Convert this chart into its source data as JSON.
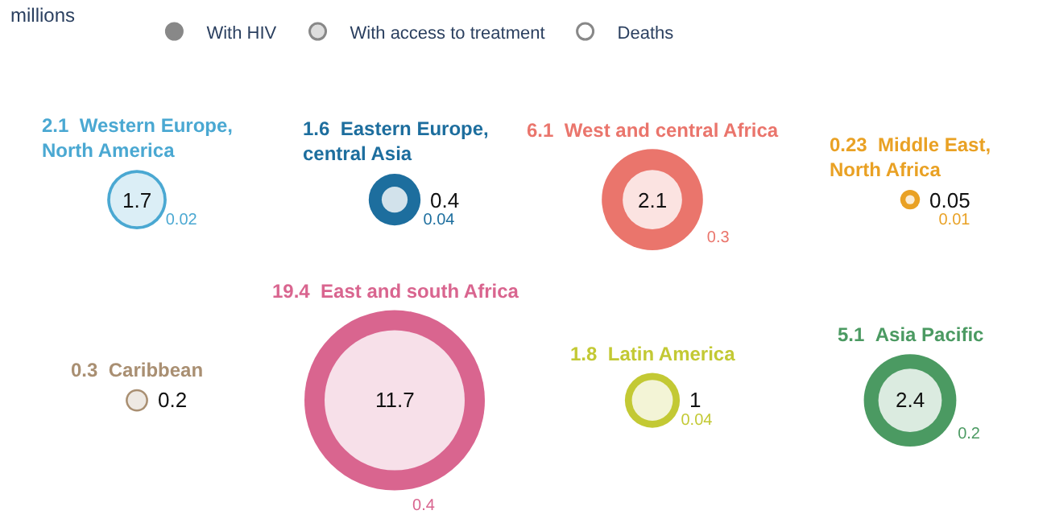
{
  "chart_data": {
    "type": "other",
    "title": "millions",
    "categories": [
      "Western Europe, North America",
      "Eastern Europe, central Asia",
      "West and central Africa",
      "Middle East, North Africa",
      "Caribbean",
      "East and south Africa",
      "Latin America",
      "Asia Pacific"
    ],
    "series": [
      {
        "name": "With HIV",
        "values": [
          2.1,
          1.6,
          6.1,
          0.23,
          0.3,
          19.4,
          1.8,
          5.1
        ],
        "colors": [
          "#4aa8d2",
          "#1d6e9e",
          "#ea756c",
          "#e9a124",
          "#a98f72",
          "#d9658f",
          "#c3c934",
          "#4b9a62"
        ]
      },
      {
        "name": "With access to treatment",
        "values": [
          1.7,
          0.4,
          2.1,
          0.05,
          0.2,
          11.7,
          1,
          2.4
        ],
        "colors": [
          "#dbeef6",
          "#d2e2eb",
          "#fbe3e1",
          "#fbecd3",
          "#eee9e3",
          "#f7e0e9",
          "#f3f4d6",
          "#dbebe0"
        ]
      },
      {
        "name": "Deaths",
        "values": [
          0.02,
          0.04,
          0.3,
          0.01,
          null,
          0.4,
          0.04,
          0.2
        ],
        "colors": [
          "#4aa8d2",
          "#1d6e9e",
          "#ea756c",
          "#e9a124",
          "#a98f72",
          "#d9658f",
          "#c3c934",
          "#4b9a62"
        ]
      }
    ],
    "data_labels": true,
    "legend": "top"
  }
}
